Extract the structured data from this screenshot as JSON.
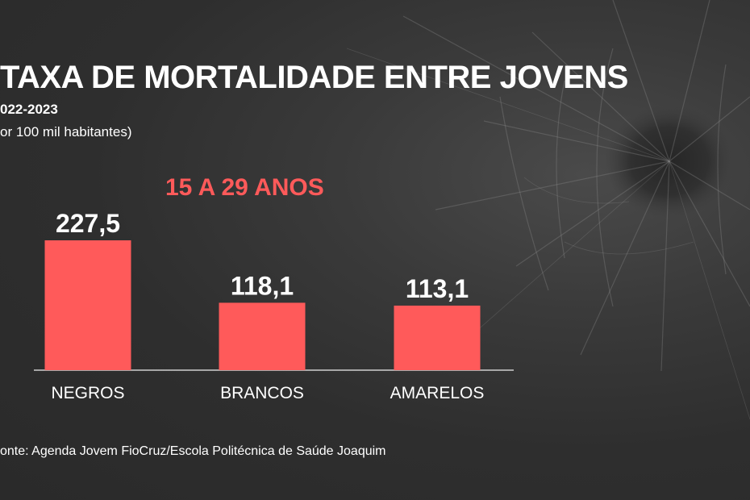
{
  "title": "TAXA DE MORTALIDADE ENTRE JOVENS",
  "subtitle": "022-2023",
  "unit_note": "or 100 mil habitantes)",
  "source": "onte: Agenda Jovem FioCruz/Escola Politécnica de Saúde Joaquim",
  "colors": {
    "bar": "#ff5a5a",
    "heading": "#ff5a5a",
    "text": "#ffffff",
    "baseline": "#cfcfcf"
  },
  "chart_data": {
    "type": "bar",
    "title": "15 A 29 ANOS",
    "categories": [
      "NEGROS",
      "BRANCOS",
      "AMARELOS"
    ],
    "values": [
      227.5,
      118.1,
      113.1
    ],
    "value_labels": [
      "227,5",
      "118,1",
      "113,1"
    ],
    "xlabel": "",
    "ylabel": "",
    "ylim": [
      0,
      227.5
    ],
    "grid": false,
    "legend": "none"
  }
}
